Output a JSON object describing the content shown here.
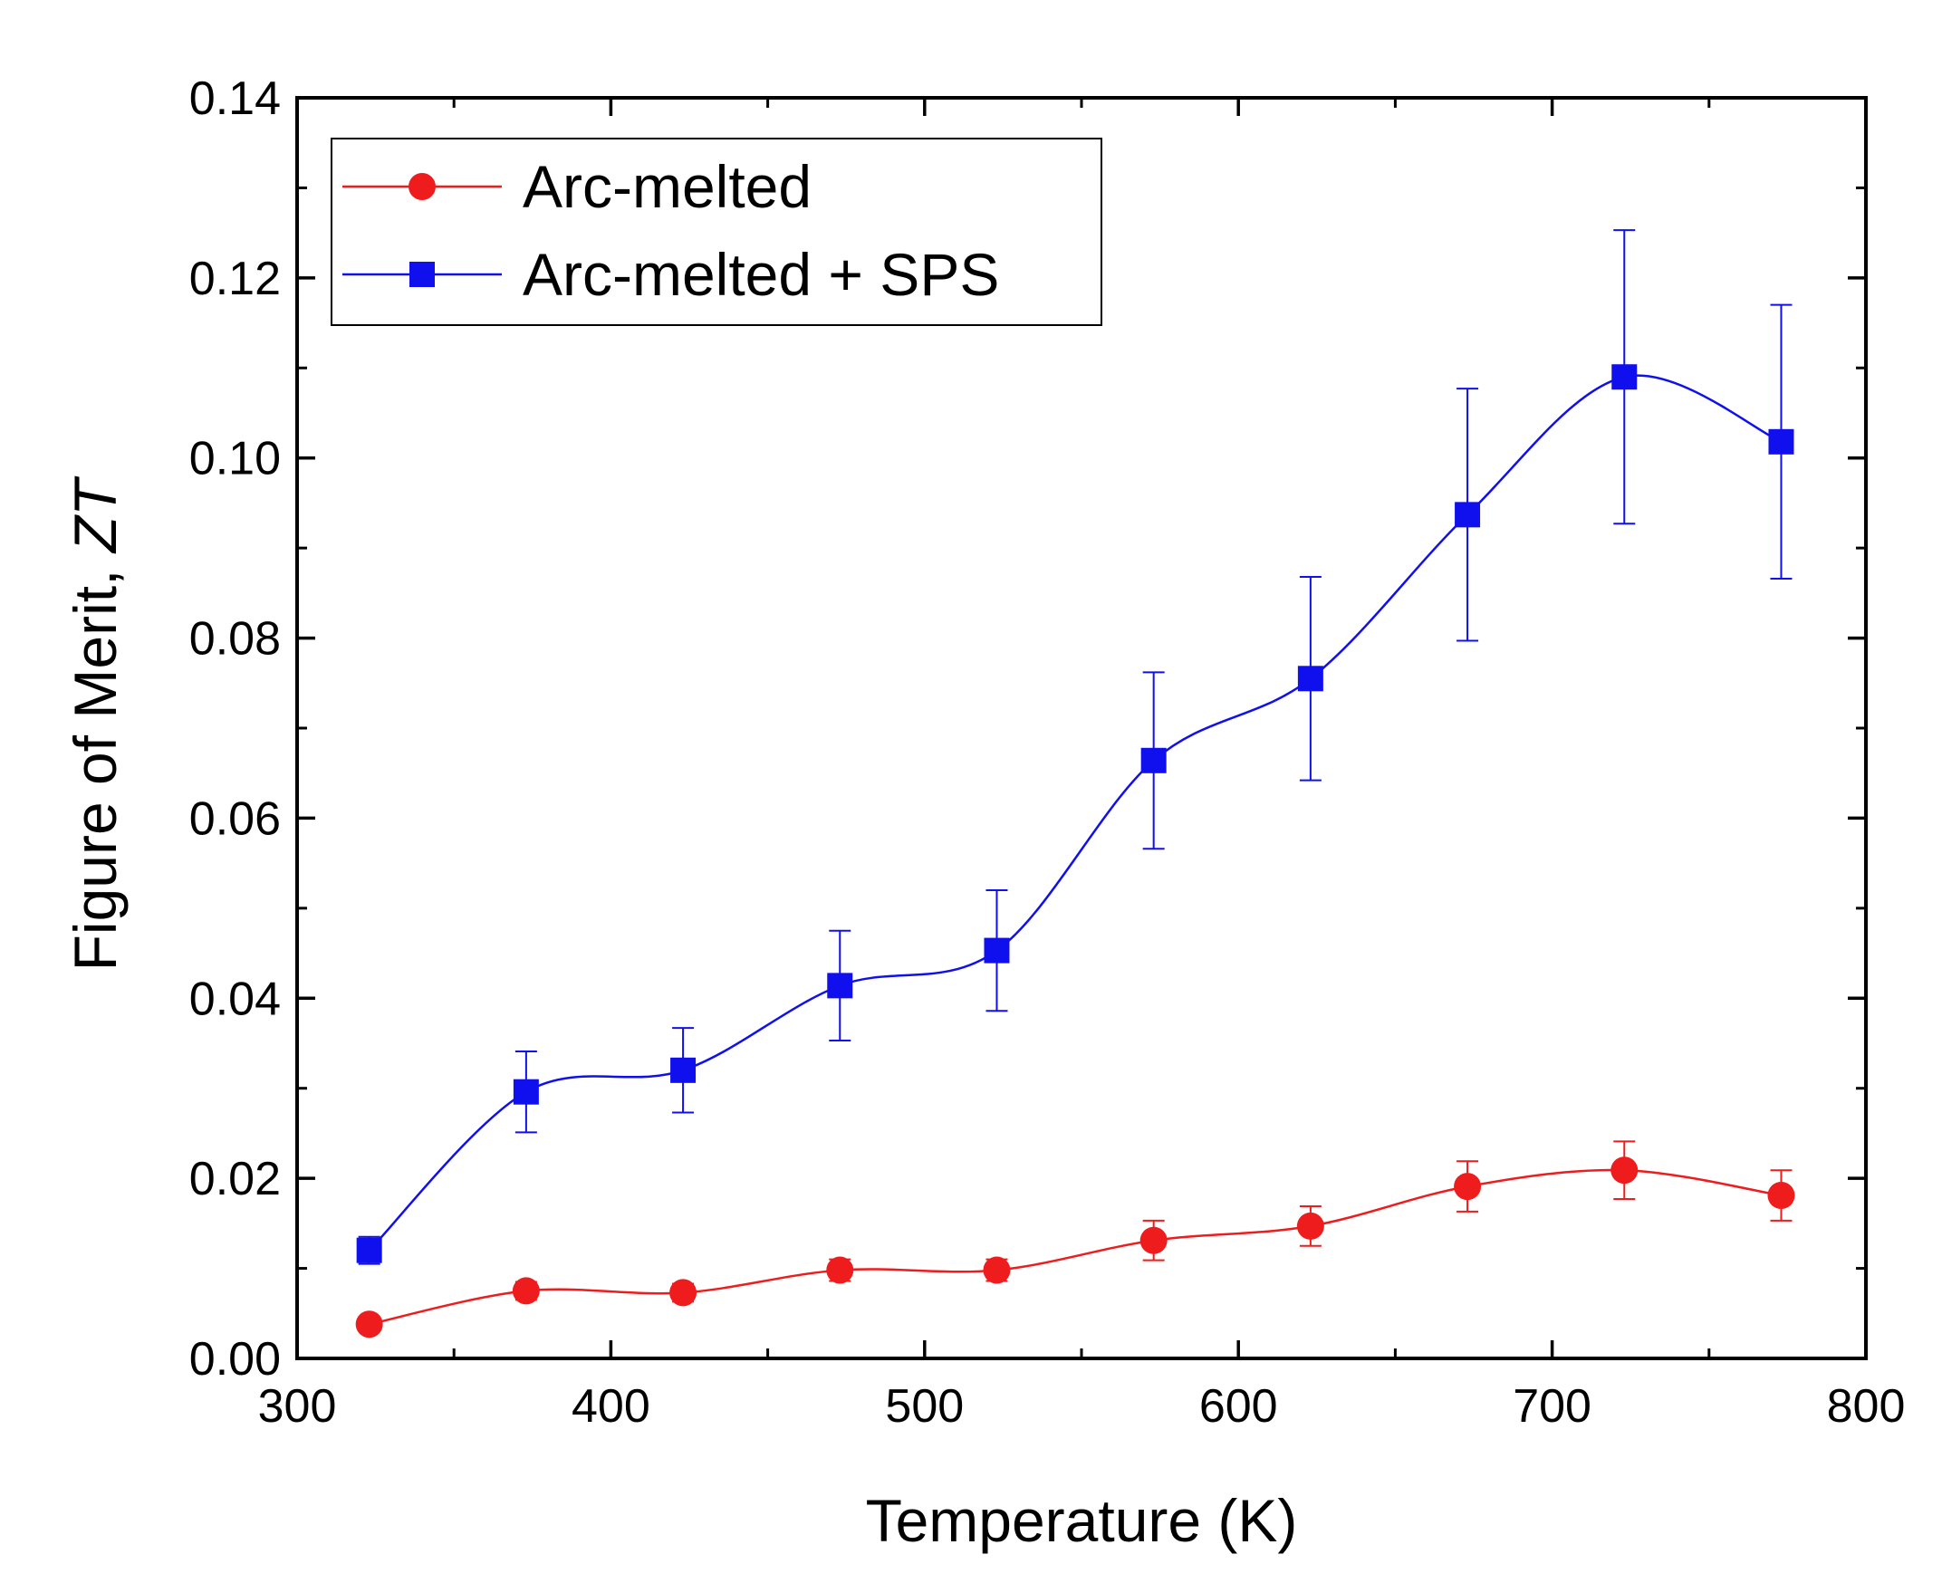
{
  "chart_data": {
    "type": "line",
    "title": "",
    "xlabel": "Temperature (K)",
    "ylabel_main": "Figure of Merit, ",
    "ylabel_italic": "ZT",
    "xlim": [
      300,
      800
    ],
    "ylim": [
      0.0,
      0.14
    ],
    "xticks": [
      300,
      400,
      500,
      600,
      700,
      800
    ],
    "xtick_labels": [
      "300",
      "400",
      "500",
      "600",
      "700",
      "800"
    ],
    "yticks": [
      0.0,
      0.02,
      0.04,
      0.06,
      0.08,
      0.1,
      0.12,
      0.14
    ],
    "ytick_labels": [
      "0.00",
      "0.02",
      "0.04",
      "0.06",
      "0.08",
      "0.10",
      "0.12",
      "0.14"
    ],
    "grid": false,
    "legend_position": "top-left",
    "series": [
      {
        "name": "Arc-melted",
        "color": "#ee1c1c",
        "marker": "circle",
        "x": [
          323,
          373,
          423,
          473,
          523,
          573,
          623,
          673,
          723,
          773
        ],
        "y": [
          0.0038,
          0.0075,
          0.0073,
          0.0098,
          0.0098,
          0.0131,
          0.0147,
          0.0191,
          0.0209,
          0.0181
        ],
        "err": [
          0.0008,
          0.001,
          0.001,
          0.0012,
          0.0012,
          0.0022,
          0.0022,
          0.0028,
          0.0032,
          0.0028
        ]
      },
      {
        "name": "Arc-melted + SPS",
        "color": "#1010ee",
        "marker": "square",
        "x": [
          323,
          373,
          423,
          473,
          523,
          573,
          623,
          673,
          723,
          773
        ],
        "y": [
          0.012,
          0.0296,
          0.032,
          0.0414,
          0.0453,
          0.0664,
          0.0755,
          0.0937,
          0.109,
          0.1018
        ],
        "err": [
          0.0015,
          0.0045,
          0.0047,
          0.0061,
          0.0067,
          0.0098,
          0.0113,
          0.014,
          0.0163,
          0.0152
        ]
      }
    ]
  }
}
